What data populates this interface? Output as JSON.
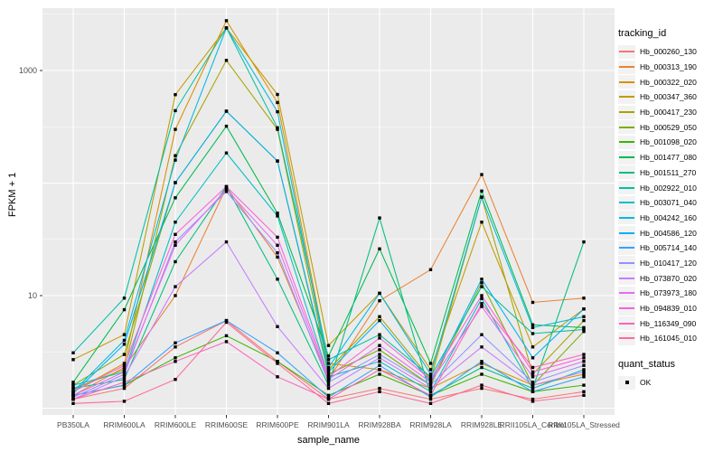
{
  "chart_data": {
    "type": "line",
    "title": "",
    "xlabel": "sample_name",
    "ylabel": "FPKM + 1",
    "y_scale": "log10",
    "ylim": [
      0.87,
      3500
    ],
    "y_ticks_labeled": [
      10,
      1000
    ],
    "y_major_gridlines": [
      1,
      10,
      100,
      1000
    ],
    "y_minor_gridlines": [
      3.162,
      31.62,
      316.2,
      3162
    ],
    "grid": "on",
    "legend_position": "right",
    "panel_bg": "#EBEBEB",
    "grid_color": "#FFFFFF",
    "tick_label_color": "#4D4D4D",
    "point_style": "small-black-square",
    "categories": [
      "PB350LA",
      "RRIM600LA",
      "RRIM600LE",
      "RRIM600SE",
      "RRIM600PE",
      "RRIM901LA",
      "RRIM928BA",
      "RRIM928LA",
      "RRIM928LE",
      "RRII105LA_Control",
      "RRII105LA_Stressed"
    ],
    "series": [
      {
        "name": "Hb_000260_130",
        "color": "#F8766D",
        "values": [
          1.2,
          1.5,
          3.5,
          6.0,
          2.6,
          1.2,
          1.5,
          1.2,
          1.5,
          1.2,
          1.4
        ]
      },
      {
        "name": "Hb_000313_190",
        "color": "#EA8331",
        "values": [
          1.3,
          2.3,
          10,
          92,
          22,
          1.8,
          9.0,
          17,
          119,
          8.7,
          9.5
        ]
      },
      {
        "name": "Hb_000322_020",
        "color": "#D89000",
        "values": [
          1.4,
          2.5,
          300,
          2770,
          520,
          2.5,
          2.2,
          1.5,
          2.5,
          1.6,
          2.0
        ]
      },
      {
        "name": "Hb_000347_360",
        "color": "#C09B00",
        "values": [
          2.7,
          4.5,
          610,
          2390,
          612,
          3.6,
          10.5,
          2.2,
          45,
          3.5,
          7.6
        ]
      },
      {
        "name": "Hb_000417_230",
        "color": "#A3A500",
        "values": [
          1.5,
          2.2,
          175,
          1230,
          300,
          2.2,
          6.5,
          1.8,
          75,
          2.0,
          6.0
        ]
      },
      {
        "name": "Hb_000529_050",
        "color": "#7CAE00",
        "values": [
          1.6,
          3.0,
          101,
          435,
          157,
          2.0,
          3.3,
          1.6,
          13,
          1.6,
          4.8
        ]
      },
      {
        "name": "Hb_001098_020",
        "color": "#39B600",
        "values": [
          1.3,
          1.6,
          2.8,
          4.4,
          2.6,
          1.3,
          2.0,
          1.3,
          2.0,
          1.4,
          1.6
        ]
      },
      {
        "name": "Hb_001477_080",
        "color": "#00BB4E",
        "values": [
          1.7,
          7.5,
          74,
          320,
          54,
          2.9,
          26,
          2.5,
          85,
          5.5,
          5.2
        ]
      },
      {
        "name": "Hb_001511_270",
        "color": "#00BF7D",
        "values": [
          1.5,
          1.8,
          20,
          93,
          14,
          1.6,
          49,
          1.3,
          2.3,
          1.5,
          30
        ]
      },
      {
        "name": "Hb_002922_010",
        "color": "#00C1A3",
        "values": [
          3.1,
          9.5,
          440,
          2390,
          310,
          2.7,
          4.5,
          1.9,
          12,
          4.6,
          5.0
        ]
      },
      {
        "name": "Hb_003071_040",
        "color": "#00BFC4",
        "values": [
          1.6,
          2.1,
          45,
          185,
          51,
          1.9,
          2.6,
          1.4,
          9.4,
          1.5,
          2.2
        ]
      },
      {
        "name": "Hb_004242_160",
        "color": "#00BAE0",
        "values": [
          1.4,
          4.0,
          160,
          2390,
          430,
          2.3,
          10.5,
          2.0,
          75,
          5.2,
          6.5
        ]
      },
      {
        "name": "Hb_004586_120",
        "color": "#00B0F6",
        "values": [
          1.35,
          3.7,
          101,
          435,
          157,
          2.1,
          6.0,
          1.7,
          14,
          2.8,
          7.6
        ]
      },
      {
        "name": "Hb_005714_140",
        "color": "#35A2FF",
        "values": [
          1.3,
          1.6,
          3.8,
          6.0,
          3.1,
          1.25,
          2.4,
          1.25,
          2.6,
          1.4,
          1.9
        ]
      },
      {
        "name": "Hb_010417_120",
        "color": "#9590FF",
        "values": [
          1.25,
          2.0,
          30,
          84,
          24,
          1.7,
          3.0,
          1.6,
          4.5,
          1.7,
          2.4
        ]
      },
      {
        "name": "Hb_073870_020",
        "color": "#C77CFF",
        "values": [
          1.2,
          1.9,
          12,
          30,
          5.3,
          1.5,
          2.8,
          1.5,
          3.5,
          1.6,
          2.1
        ]
      },
      {
        "name": "Hb_073973_180",
        "color": "#E76BF3",
        "values": [
          1.3,
          2.1,
          28,
          88,
          28,
          1.8,
          3.6,
          1.7,
          8.0,
          1.9,
          2.6
        ]
      },
      {
        "name": "Hb_094839_010",
        "color": "#FA62DB",
        "values": [
          1.4,
          2.4,
          35,
          93,
          33,
          1.9,
          4.2,
          1.8,
          10,
          2.1,
          2.8
        ]
      },
      {
        "name": "Hb_116349_090",
        "color": "#FF62BC",
        "values": [
          1.2,
          1.7,
          2.6,
          3.9,
          1.9,
          1.2,
          2.2,
          1.3,
          8.5,
          2.3,
          3.0
        ]
      },
      {
        "name": "Hb_161045_010",
        "color": "#FF6A98",
        "values": [
          1.1,
          1.15,
          1.8,
          5.8,
          2.5,
          1.1,
          1.4,
          1.1,
          1.6,
          1.15,
          1.3
        ]
      }
    ]
  },
  "legend_tracking": {
    "title": "tracking_id"
  },
  "legend_quant": {
    "title": "quant_status",
    "items": [
      {
        "label": "OK",
        "symbol": "black-square"
      }
    ]
  }
}
